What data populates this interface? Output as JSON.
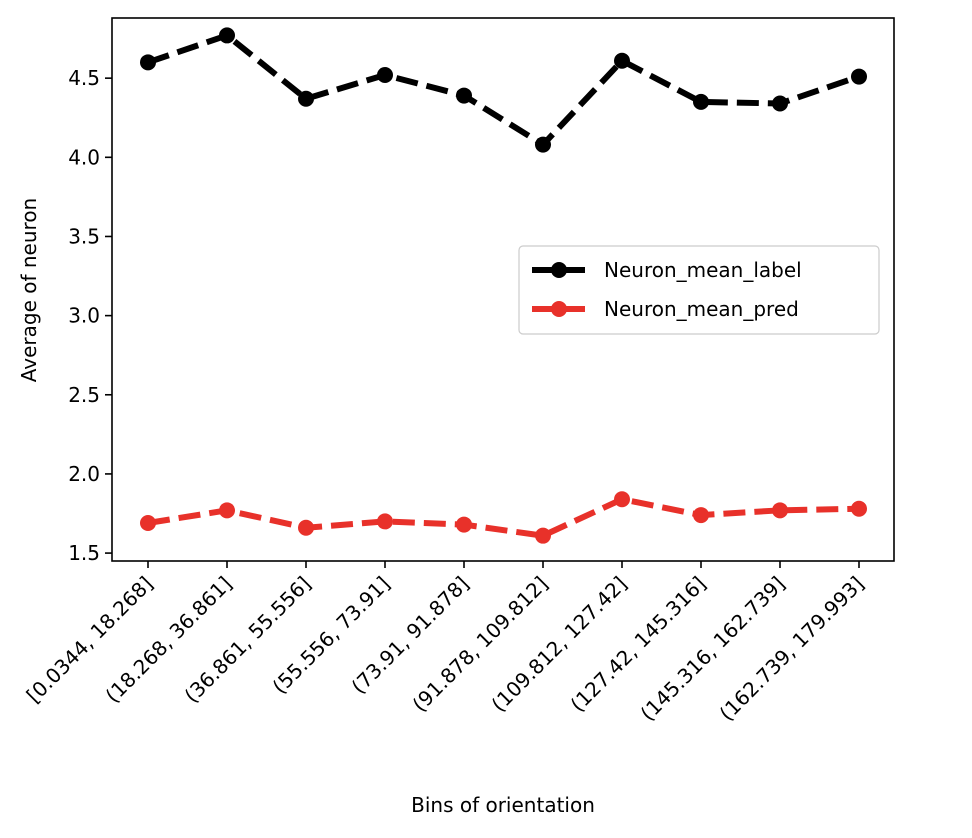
{
  "chart_data": {
    "type": "line",
    "title": "",
    "xlabel": "Bins of orientation",
    "ylabel": "Average of neuron",
    "categories": [
      "[0.0344,  18.268]",
      "(18.268, 36.861]",
      "(36.861, 55.556]",
      "(55.556, 73.91]",
      "(73.91, 91.878]",
      "(91.878, 109.812]",
      "(109.812, 127.42]",
      "(127.42, 145.316]",
      "(145.316, 162.739]",
      "(162.739, 179.993]"
    ],
    "series": [
      {
        "name": "Neuron_mean_label",
        "color": "#000000",
        "line_style": "dashed",
        "marker": "circle",
        "values": [
          4.6,
          4.77,
          4.37,
          4.52,
          4.39,
          4.08,
          4.61,
          4.35,
          4.34,
          4.51
        ]
      },
      {
        "name": "Neuron_mean_pred",
        "color": "#e8312a",
        "line_style": "dashed",
        "marker": "circle",
        "values": [
          1.69,
          1.77,
          1.66,
          1.7,
          1.68,
          1.61,
          1.84,
          1.74,
          1.77,
          1.78
        ]
      }
    ],
    "ylim": [
      1.45,
      4.88
    ],
    "yticks": [
      "1.5",
      "2.0",
      "2.5",
      "3.0",
      "3.5",
      "4.0",
      "4.5"
    ],
    "ytick_values": [
      1.5,
      2.0,
      2.5,
      3.0,
      3.5,
      4.0,
      4.5
    ],
    "grid": false,
    "legend_position": "center-right"
  }
}
